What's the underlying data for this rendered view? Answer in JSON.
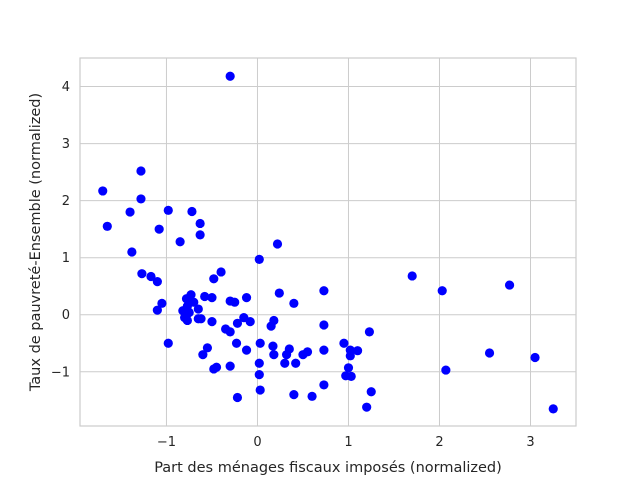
{
  "chart_data": {
    "type": "scatter",
    "title": "",
    "xlabel": "Part des ménages fiscaux imposés (normalized)",
    "ylabel": "Taux de pauvreté-Ensemble (normalized)",
    "xlim": [
      -1.95,
      3.5
    ],
    "ylim": [
      -1.95,
      4.5
    ],
    "xticks": [
      -1,
      0,
      1,
      2,
      3
    ],
    "yticks": [
      -1,
      0,
      1,
      2,
      3,
      4
    ],
    "xtick_labels": [
      "−1",
      "0",
      "1",
      "2",
      "3"
    ],
    "ytick_labels": [
      "−1",
      "0",
      "1",
      "2",
      "3",
      "4"
    ],
    "grid": true,
    "marker_color": "#0000ff",
    "points": [
      [
        -0.3,
        4.18
      ],
      [
        -1.7,
        2.17
      ],
      [
        -1.65,
        1.55
      ],
      [
        -1.28,
        2.52
      ],
      [
        -1.28,
        2.03
      ],
      [
        -1.4,
        1.8
      ],
      [
        -1.38,
        1.1
      ],
      [
        -0.98,
        1.83
      ],
      [
        -1.08,
        1.5
      ],
      [
        -0.85,
        1.28
      ],
      [
        -0.72,
        1.81
      ],
      [
        -0.63,
        1.6
      ],
      [
        -0.63,
        1.4
      ],
      [
        -1.27,
        0.72
      ],
      [
        -1.17,
        0.67
      ],
      [
        -1.1,
        0.58
      ],
      [
        -1.05,
        0.2
      ],
      [
        -1.1,
        0.08
      ],
      [
        -0.98,
        -0.5
      ],
      [
        -0.78,
        0.28
      ],
      [
        -0.73,
        0.35
      ],
      [
        -0.7,
        0.22
      ],
      [
        -0.77,
        0.15
      ],
      [
        -0.82,
        0.07
      ],
      [
        -0.75,
        0.04
      ],
      [
        -0.65,
        0.1
      ],
      [
        -0.62,
        -0.07
      ],
      [
        -0.58,
        0.32
      ],
      [
        -0.5,
        0.3
      ],
      [
        -0.8,
        -0.05
      ],
      [
        -0.77,
        -0.1
      ],
      [
        -0.65,
        -0.07
      ],
      [
        -0.5,
        -0.12
      ],
      [
        -0.48,
        0.63
      ],
      [
        -0.4,
        0.75
      ],
      [
        -0.3,
        0.24
      ],
      [
        -0.25,
        0.22
      ],
      [
        -0.12,
        0.3
      ],
      [
        -0.35,
        -0.25
      ],
      [
        -0.3,
        -0.3
      ],
      [
        -0.22,
        -0.15
      ],
      [
        -0.15,
        -0.05
      ],
      [
        -0.08,
        -0.12
      ],
      [
        -0.23,
        -0.5
      ],
      [
        -0.12,
        -0.62
      ],
      [
        -0.55,
        -0.58
      ],
      [
        -0.6,
        -0.7
      ],
      [
        -0.48,
        -0.95
      ],
      [
        -0.45,
        -0.92
      ],
      [
        -0.3,
        -0.9
      ],
      [
        -0.22,
        -1.45
      ],
      [
        0.02,
        0.97
      ],
      [
        0.22,
        1.24
      ],
      [
        0.24,
        0.38
      ],
      [
        0.4,
        0.2
      ],
      [
        0.03,
        -0.5
      ],
      [
        0.02,
        -0.85
      ],
      [
        0.02,
        -1.05
      ],
      [
        0.03,
        -1.32
      ],
      [
        0.15,
        -0.2
      ],
      [
        0.18,
        -0.1
      ],
      [
        0.17,
        -0.55
      ],
      [
        0.18,
        -0.7
      ],
      [
        0.3,
        -0.85
      ],
      [
        0.32,
        -0.7
      ],
      [
        0.35,
        -0.6
      ],
      [
        0.42,
        -0.85
      ],
      [
        0.5,
        -0.7
      ],
      [
        0.55,
        -0.65
      ],
      [
        0.4,
        -1.4
      ],
      [
        0.6,
        -1.43
      ],
      [
        0.73,
        0.42
      ],
      [
        0.73,
        -0.18
      ],
      [
        0.73,
        -0.62
      ],
      [
        0.73,
        -1.23
      ],
      [
        0.95,
        -0.5
      ],
      [
        1.02,
        -0.62
      ],
      [
        1.02,
        -0.72
      ],
      [
        1.1,
        -0.63
      ],
      [
        1.0,
        -0.93
      ],
      [
        0.97,
        -1.07
      ],
      [
        1.03,
        -1.08
      ],
      [
        1.23,
        -0.3
      ],
      [
        1.25,
        -1.35
      ],
      [
        1.2,
        -1.62
      ],
      [
        1.7,
        0.68
      ],
      [
        2.03,
        0.42
      ],
      [
        2.07,
        -0.97
      ],
      [
        2.55,
        -0.67
      ],
      [
        2.77,
        0.52
      ],
      [
        3.05,
        -0.75
      ],
      [
        3.25,
        -1.65
      ]
    ]
  }
}
